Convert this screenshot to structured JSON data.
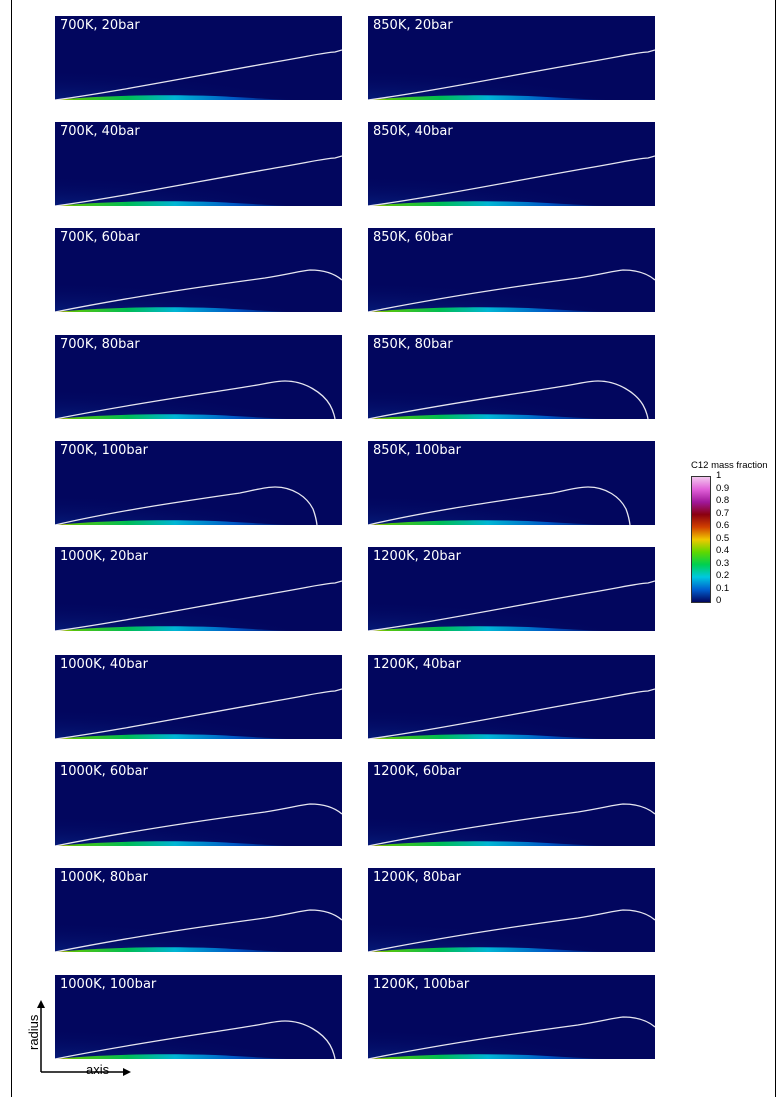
{
  "panels": [
    {
      "label": "700K, 20bar",
      "shape": "linear"
    },
    {
      "label": "850K, 20bar",
      "shape": "linear"
    },
    {
      "label": "700K, 40bar",
      "shape": "linear"
    },
    {
      "label": "850K, 40bar",
      "shape": "linear"
    },
    {
      "label": "700K, 60bar",
      "shape": "hump"
    },
    {
      "label": "850K, 60bar",
      "shape": "hump"
    },
    {
      "label": "700K, 80bar",
      "shape": "closed"
    },
    {
      "label": "850K, 80bar",
      "shape": "closed"
    },
    {
      "label": "700K, 100bar",
      "shape": "closed-short"
    },
    {
      "label": "850K, 100bar",
      "shape": "closed-short"
    },
    {
      "label": "1000K, 20bar",
      "shape": "linear"
    },
    {
      "label": "1200K, 20bar",
      "shape": "linear"
    },
    {
      "label": "1000K, 40bar",
      "shape": "linear"
    },
    {
      "label": "1200K, 40bar",
      "shape": "linear"
    },
    {
      "label": "1000K, 60bar",
      "shape": "hump"
    },
    {
      "label": "1200K, 60bar",
      "shape": "hump"
    },
    {
      "label": "1000K, 80bar",
      "shape": "hump"
    },
    {
      "label": "1200K, 80bar",
      "shape": "hump"
    },
    {
      "label": "1000K, 100bar",
      "shape": "closed"
    },
    {
      "label": "1200K, 100bar",
      "shape": "hump"
    }
  ],
  "colorbar": {
    "title": "C12 mass fraction",
    "ticks": [
      "1",
      "0.9",
      "0.8",
      "0.7",
      "0.6",
      "0.5",
      "0.4",
      "0.3",
      "0.2",
      "0.1",
      "0"
    ]
  },
  "axes": {
    "vertical": "radius",
    "horizontal": "axis"
  },
  "colors": {
    "background": "#02065e",
    "isoline": "#e6e6f0"
  }
}
